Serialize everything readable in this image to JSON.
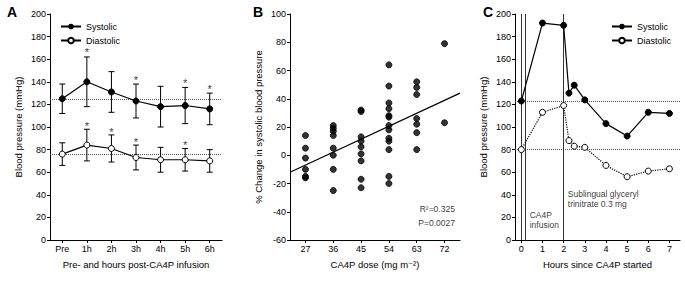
{
  "chart_data": [
    {
      "title": "A",
      "type": "line",
      "x_label": "Pre- and hours post-CA4P infusion",
      "y_label": "Blood pressure (mmHg)",
      "categories": [
        "Pre",
        "1h",
        "2h",
        "3h",
        "4h",
        "5h",
        "6h"
      ],
      "ylim": [
        0,
        200
      ],
      "yticks": [
        0,
        20,
        40,
        60,
        80,
        100,
        120,
        140,
        160,
        180,
        200
      ],
      "grid": false,
      "legend": "upper left",
      "series": [
        {
          "name": "Systolic",
          "color": "#000000",
          "marker": "filled_circle",
          "line_style": "solid",
          "values": [
            125,
            140,
            131,
            123,
            118,
            119,
            116
          ],
          "errors": [
            13,
            22,
            18,
            15,
            18,
            16,
            14
          ]
        },
        {
          "name": "Diastolic",
          "color": "#000000",
          "marker": "open_circle",
          "line_style": "solid",
          "values": [
            76,
            84,
            81,
            73,
            71,
            71,
            70
          ],
          "errors": [
            10,
            14,
            12,
            11,
            11,
            10,
            10
          ]
        }
      ],
      "hlines": [
        {
          "value": 125,
          "line_style": "dotted"
        },
        {
          "value": 76,
          "line_style": "dotted"
        }
      ],
      "annotations": [
        {
          "text": "*",
          "x": "1h",
          "y": 166
        },
        {
          "text": "*",
          "x": "3h",
          "y": 142
        },
        {
          "text": "*",
          "x": "5h",
          "y": 139
        },
        {
          "text": "*",
          "x": "6h",
          "y": 134
        },
        {
          "text": "*",
          "x": "1h",
          "y": 101
        },
        {
          "text": "*",
          "x": "2h",
          "y": 96
        },
        {
          "text": "*",
          "x": "3h",
          "y": 87
        },
        {
          "text": "*",
          "x": "5h",
          "y": 84
        }
      ]
    },
    {
      "title": "B",
      "type": "scatter",
      "x_label": "CA4P dose (mg m⁻²)",
      "y_label": "% Change in systolic blood pressure",
      "xlim": [
        22,
        77
      ],
      "xticks": [
        27,
        36,
        45,
        54,
        63,
        72
      ],
      "ylim": [
        -60,
        100
      ],
      "yticks": [
        -60,
        -40,
        -20,
        0,
        20,
        40,
        60,
        80,
        100
      ],
      "grid": false,
      "series": [
        {
          "type": "scatter",
          "color": "#000000",
          "marker": "filled_circle",
          "x": [
            27,
            27,
            27,
            27,
            27,
            27,
            36,
            36,
            36,
            36,
            36,
            36,
            36,
            36,
            45,
            45,
            45,
            45,
            45,
            45,
            45,
            45,
            45,
            54,
            54,
            54,
            54,
            54,
            54,
            54,
            54,
            54,
            54,
            54,
            54,
            54,
            63,
            63,
            63,
            63,
            63,
            63,
            63,
            72,
            72
          ],
          "values": [
            14,
            5,
            -2,
            -10,
            -15,
            -16,
            21,
            19,
            17,
            14,
            5,
            0,
            -10,
            -25,
            32,
            31,
            13,
            10,
            6,
            1,
            -4,
            -17,
            -23,
            64,
            49,
            37,
            33,
            28,
            27,
            21,
            18,
            12,
            10,
            4,
            -15,
            -20,
            52,
            48,
            43,
            26,
            22,
            16,
            4,
            79,
            23
          ]
        },
        {
          "type": "line",
          "color": "#000000",
          "marker": "none",
          "line_style": "solid",
          "x": [
            22,
            77
          ],
          "values": [
            -12,
            44
          ]
        }
      ],
      "annotations": [
        {
          "text": "R²=0.325",
          "x": 76,
          "y": -38
        },
        {
          "text": "P=0.0027",
          "x": 76,
          "y": -48
        }
      ]
    },
    {
      "title": "C",
      "type": "line",
      "x_label": "Hours since CA4P started",
      "y_label": "Blood pressure (mmHg)",
      "xlim": [
        -0.3,
        7.5
      ],
      "xticks": [
        0,
        1,
        2,
        3,
        4,
        5,
        6,
        7
      ],
      "ylim": [
        0,
        200
      ],
      "yticks": [
        0,
        20,
        40,
        60,
        80,
        100,
        120,
        140,
        160,
        180,
        200
      ],
      "grid": false,
      "legend": "upper right",
      "series": [
        {
          "name": "Systolic",
          "color": "#000000",
          "marker": "filled_circle",
          "line_style": "solid",
          "x": [
            0,
            1,
            2,
            2.25,
            2.5,
            3,
            4,
            5,
            6,
            7
          ],
          "values": [
            123,
            192,
            190,
            130,
            137,
            124,
            103,
            92,
            113,
            112
          ]
        },
        {
          "name": "Diastolic",
          "color": "#000000",
          "marker": "open_circle",
          "line_style": "dotted",
          "x": [
            0,
            1,
            2,
            2.25,
            2.5,
            3,
            4,
            5,
            6,
            7
          ],
          "values": [
            80,
            113,
            119,
            88,
            83,
            82,
            66,
            56,
            61,
            63
          ]
        }
      ],
      "hlines": [
        {
          "value": 123,
          "line_style": "dotted"
        },
        {
          "value": 80,
          "line_style": "dotted"
        }
      ],
      "vlines": [
        {
          "value": 0,
          "line_style": "solid"
        },
        {
          "value": 0.17,
          "line_style": "solid"
        },
        {
          "value": 2,
          "line_style": "solid"
        }
      ],
      "annotations": [
        {
          "text": "CA4P\ninfusion",
          "x": 0.3,
          "y": 18
        },
        {
          "text": "Sublingual glyceryl\ntrinitrate 0.3 mg",
          "x": 2.1,
          "y": 36
        }
      ]
    }
  ]
}
